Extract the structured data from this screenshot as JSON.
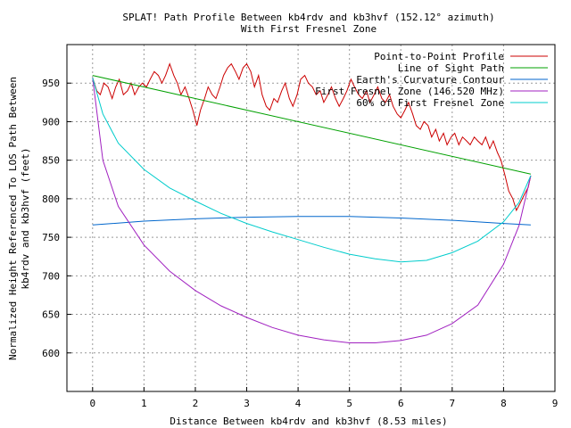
{
  "chart_data": {
    "type": "line",
    "title": "SPLAT! Path Profile Between kb4rdv and kb3hvf (152.12° azimuth)",
    "subtitle": "With First Fresnel Zone",
    "xlabel": "Distance Between kb4rdv and kb3hvf (8.53 miles)",
    "ylabel_line1": "Normalized Height Referenced To LOS Path Between",
    "ylabel_line2": "kb4rdv and kb3hvf (feet)",
    "xlim": [
      -0.5,
      9
    ],
    "ylim": [
      550,
      1000
    ],
    "grid": true,
    "legend_position": "top-right",
    "x_ticks": [
      0,
      1,
      2,
      3,
      4,
      5,
      6,
      7,
      8,
      9
    ],
    "y_ticks": [
      600,
      650,
      700,
      750,
      800,
      850,
      900,
      950
    ],
    "series": [
      {
        "name": "Point-to-Point Profile",
        "color": "#cc0000",
        "x": [
          0.0,
          0.08,
          0.15,
          0.22,
          0.3,
          0.38,
          0.45,
          0.52,
          0.6,
          0.68,
          0.75,
          0.82,
          0.9,
          0.97,
          1.05,
          1.12,
          1.2,
          1.28,
          1.35,
          1.42,
          1.5,
          1.58,
          1.65,
          1.72,
          1.8,
          1.88,
          1.95,
          2.03,
          2.1,
          2.18,
          2.25,
          2.33,
          2.4,
          2.48,
          2.55,
          2.63,
          2.7,
          2.78,
          2.85,
          2.93,
          3.0,
          3.08,
          3.15,
          3.23,
          3.3,
          3.38,
          3.45,
          3.53,
          3.6,
          3.68,
          3.75,
          3.83,
          3.9,
          3.98,
          4.05,
          4.13,
          4.2,
          4.28,
          4.35,
          4.43,
          4.5,
          4.58,
          4.65,
          4.73,
          4.8,
          4.88,
          4.95,
          5.03,
          5.1,
          5.18,
          5.25,
          5.33,
          5.4,
          5.48,
          5.55,
          5.63,
          5.7,
          5.78,
          5.85,
          5.93,
          6.0,
          6.08,
          6.15,
          6.23,
          6.3,
          6.38,
          6.45,
          6.53,
          6.6,
          6.68,
          6.75,
          6.83,
          6.9,
          6.98,
          7.05,
          7.13,
          7.2,
          7.28,
          7.35,
          7.43,
          7.5,
          7.58,
          7.65,
          7.73,
          7.8,
          7.88,
          7.95,
          8.03,
          8.1,
          8.18,
          8.25,
          8.33,
          8.4,
          8.48,
          8.53
        ],
        "y": [
          957,
          940,
          935,
          950,
          945,
          930,
          945,
          955,
          935,
          940,
          950,
          935,
          945,
          950,
          945,
          955,
          965,
          960,
          950,
          960,
          975,
          960,
          950,
          935,
          945,
          930,
          915,
          895,
          915,
          930,
          945,
          935,
          930,
          945,
          960,
          970,
          975,
          965,
          955,
          970,
          975,
          965,
          945,
          960,
          935,
          920,
          915,
          930,
          925,
          940,
          950,
          930,
          920,
          935,
          955,
          960,
          950,
          945,
          935,
          940,
          925,
          935,
          945,
          930,
          920,
          930,
          940,
          955,
          945,
          935,
          930,
          940,
          925,
          935,
          945,
          930,
          925,
          935,
          920,
          910,
          905,
          915,
          925,
          910,
          895,
          890,
          900,
          895,
          880,
          890,
          875,
          885,
          870,
          880,
          885,
          870,
          880,
          875,
          870,
          880,
          875,
          870,
          880,
          865,
          875,
          860,
          850,
          830,
          810,
          800,
          785,
          795,
          805,
          815,
          830
        ]
      },
      {
        "name": "Line of Sight Path",
        "color": "#00a000",
        "x": [
          0,
          8.53
        ],
        "y": [
          960,
          832
        ]
      },
      {
        "name": "Earth's Curvature Contour",
        "color": "#0066cc",
        "x": [
          0,
          1,
          2,
          3,
          4,
          5,
          6,
          7,
          8,
          8.53
        ],
        "y": [
          766,
          771,
          774,
          776,
          777,
          777,
          775,
          772,
          768,
          766
        ]
      },
      {
        "name": "First Fresnel Zone (146.520 MHz)",
        "color": "#a020c0",
        "x": [
          0,
          0.2,
          0.5,
          1,
          1.5,
          2,
          2.5,
          3,
          3.5,
          4,
          4.5,
          5,
          5.5,
          6,
          6.5,
          7,
          7.5,
          8,
          8.3,
          8.53
        ],
        "y": [
          957,
          850,
          790,
          740,
          706,
          681,
          661,
          646,
          633,
          623,
          617,
          613,
          613,
          616,
          623,
          638,
          662,
          715,
          765,
          830
        ]
      },
      {
        "name": "60% of First Fresnel Zone",
        "color": "#00cccc",
        "x": [
          0,
          0.2,
          0.5,
          1,
          1.5,
          2,
          2.5,
          3,
          3.5,
          4,
          4.5,
          5,
          5.5,
          6,
          6.5,
          7,
          7.5,
          8,
          8.3,
          8.53
        ],
        "y": [
          957,
          910,
          872,
          838,
          814,
          797,
          781,
          768,
          757,
          747,
          737,
          728,
          722,
          718,
          720,
          730,
          745,
          770,
          795,
          830
        ]
      }
    ]
  }
}
